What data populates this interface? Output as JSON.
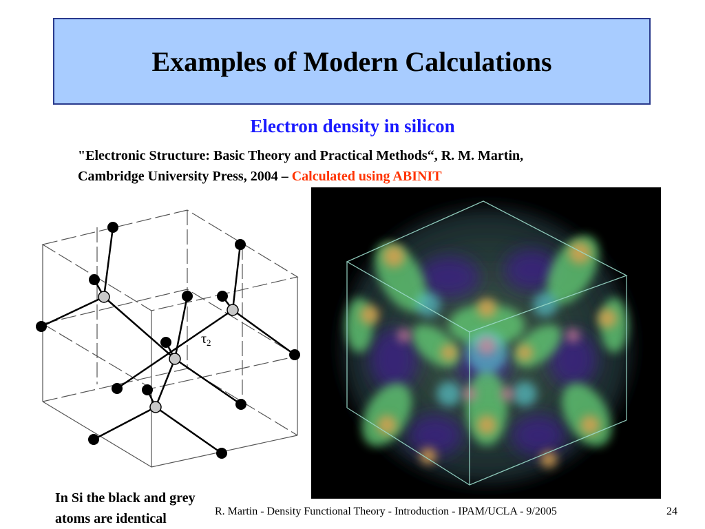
{
  "slide": {
    "title": "Examples of Modern Calculations",
    "subtitle": "Electron density in silicon",
    "citation_line1": "\"Electronic Structure: Basic Theory and Practical Methods“, R. M. Martin,",
    "citation_line2_black": "Cambridge University Press, 2004 –",
    "citation_line2_red": "Calculated using ABINIT",
    "lattice_label_tau": "τ",
    "lattice_label_sub": "2",
    "caption_line1": "In Si the black and grey",
    "caption_line2": "atoms are identical",
    "footer": "R. Martin - Density Functional Theory - Introduction - IPAM/UCLA - 9/2005",
    "page_number": "24"
  },
  "colors": {
    "title_bg": "#a8ccff",
    "title_border": "#2a3a8c",
    "subtitle": "#1a1aff",
    "highlight_red": "#ff3300",
    "grey_atom": "#c8c8c8"
  }
}
